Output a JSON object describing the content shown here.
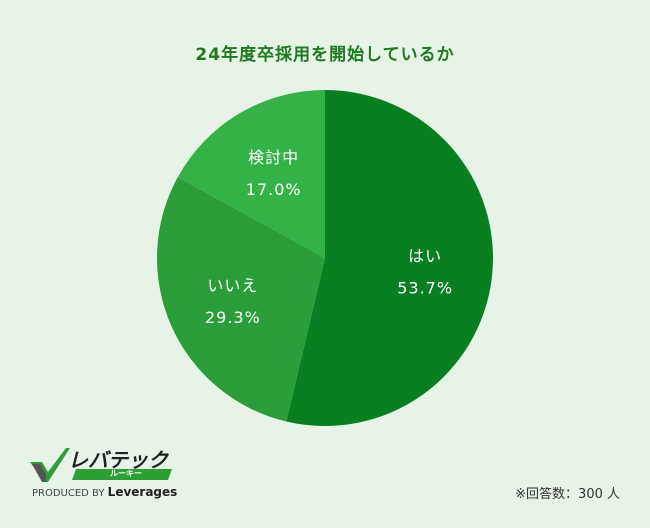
{
  "title": "24年度卒採用を開始しているか",
  "chart_data": {
    "type": "pie",
    "title": "24年度卒採用を開始しているか",
    "categories": [
      "はい",
      "いいえ",
      "検討中"
    ],
    "values": [
      53.7,
      29.3,
      17.0
    ],
    "value_labels": [
      "53.7%",
      "29.3%",
      "17.0%"
    ],
    "unit": "%",
    "start": "12 o'clock",
    "direction": "clockwise",
    "colors": [
      "#097f22",
      "#2b9e39",
      "#34b245"
    ]
  },
  "footnote": "※回答数：300 人",
  "logo": {
    "brand": "レバテック",
    "sub": "ルーキー",
    "produced_by": "PRODUCED BY",
    "company": "Leverages"
  },
  "colors": {
    "background": "#e6f3e6",
    "title": "#1f7a1f",
    "accent": "#2e9e36"
  }
}
